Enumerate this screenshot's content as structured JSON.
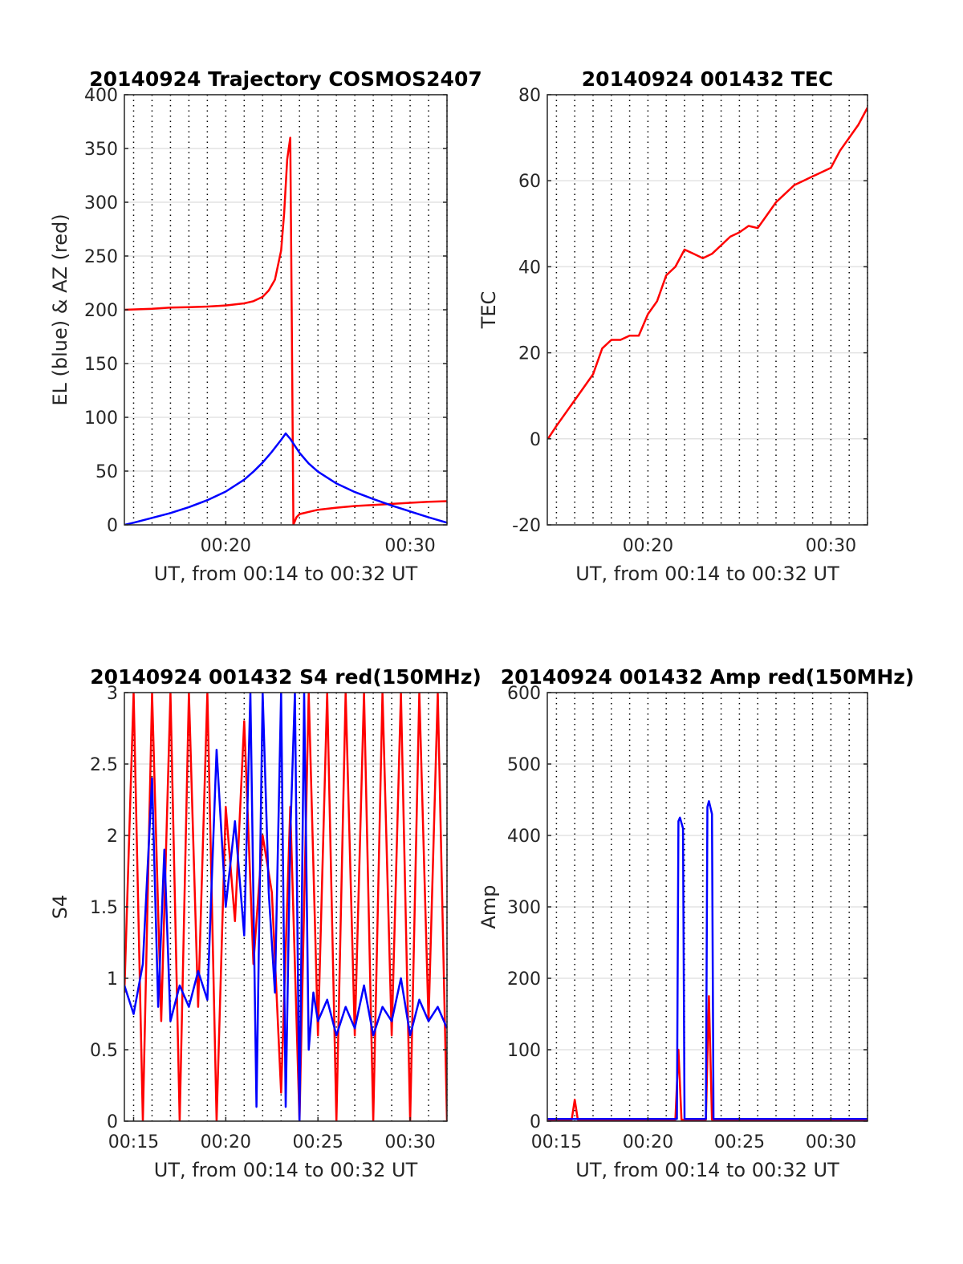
{
  "chart_data": [
    {
      "type": "line",
      "title": "20140924 Trajectory COSMOS2407",
      "xlabel": "UT, from 00:14 to 00:32 UT",
      "ylabel": "EL (blue) & AZ (red)",
      "xlim": [
        "00:14:30",
        "00:32:00"
      ],
      "ylim": [
        0,
        400
      ],
      "yticks": [
        0,
        50,
        100,
        150,
        200,
        250,
        300,
        350,
        400
      ],
      "xticks": [
        "00:20",
        "00:30"
      ],
      "grid": true,
      "series": [
        {
          "color": "#ff0000",
          "x": [
            "00:14:30",
            "00:16:00",
            "00:17:00",
            "00:18:00",
            "00:19:00",
            "00:20:00",
            "00:21:00",
            "00:21:30",
            "00:22:00",
            "00:22:20",
            "00:22:40",
            "00:23:00",
            "00:23:10",
            "00:23:20",
            "00:23:30",
            "00:23:35",
            "00:23:40",
            "00:23:50",
            "00:24:00",
            "00:25:00",
            "00:26:00",
            "00:27:00",
            "00:28:00",
            "00:29:00",
            "00:30:00",
            "00:31:00",
            "00:32:00"
          ],
          "values": [
            200,
            201,
            202,
            202.5,
            203,
            204,
            206,
            208,
            212,
            218,
            228,
            255,
            290,
            340,
            360,
            180,
            0,
            7,
            10,
            14,
            16,
            17.5,
            18.5,
            19.5,
            20.5,
            21.5,
            22
          ]
        },
        {
          "color": "#0000ff",
          "x": [
            "00:14:30",
            "00:15:00",
            "00:16:00",
            "00:17:00",
            "00:18:00",
            "00:19:00",
            "00:20:00",
            "00:21:00",
            "00:21:30",
            "00:22:00",
            "00:22:30",
            "00:23:00",
            "00:23:15",
            "00:23:30",
            "00:24:00",
            "00:24:30",
            "00:25:00",
            "00:26:00",
            "00:27:00",
            "00:28:00",
            "00:29:00",
            "00:30:00",
            "00:31:00",
            "00:32:00"
          ],
          "values": [
            0,
            2,
            6.5,
            11,
            16.5,
            23,
            31,
            42,
            49.5,
            58,
            68,
            79,
            85,
            80,
            67,
            57,
            49.5,
            38.5,
            30.5,
            24,
            18,
            12.5,
            7,
            2
          ]
        }
      ]
    },
    {
      "type": "line",
      "title": "20140924 001432 TEC",
      "xlabel": "UT, from 00:14 to 00:32 UT",
      "ylabel": "TEC",
      "xlim": [
        "00:14:30",
        "00:32:00"
      ],
      "ylim": [
        -20,
        80
      ],
      "yticks": [
        -20,
        0,
        20,
        40,
        60,
        80
      ],
      "xticks": [
        "00:20",
        "00:30"
      ],
      "grid": true,
      "series": [
        {
          "color": "#ff0000",
          "x": [
            "00:14:32",
            "00:15:00",
            "00:16:00",
            "00:17:00",
            "00:17:30",
            "00:18:00",
            "00:18:30",
            "00:19:00",
            "00:19:30",
            "00:20:00",
            "00:20:30",
            "00:21:00",
            "00:21:30",
            "00:22:00",
            "00:22:30",
            "00:23:00",
            "00:23:30",
            "00:24:00",
            "00:24:30",
            "00:25:00",
            "00:25:30",
            "00:26:00",
            "00:26:30",
            "00:27:00",
            "00:27:30",
            "00:28:00",
            "00:28:30",
            "00:29:00",
            "00:29:30",
            "00:30:00",
            "00:30:30",
            "00:31:00",
            "00:31:30",
            "00:32:00"
          ],
          "values": [
            0,
            3,
            9,
            15,
            21,
            23,
            23,
            24,
            24,
            29,
            32,
            38,
            40,
            44,
            43,
            42,
            43,
            45,
            47,
            48,
            49.5,
            49,
            52,
            55,
            57,
            59,
            60,
            61,
            62,
            63,
            67,
            70,
            73,
            77
          ]
        }
      ]
    },
    {
      "type": "line",
      "title": "20140924 001432 S4 red(150MHz)",
      "xlabel": "UT, from 00:14 to 00:32 UT",
      "ylabel": "S4",
      "xlim": [
        "00:14:30",
        "00:32:00"
      ],
      "ylim": [
        0,
        3
      ],
      "yticks": [
        "0",
        "0.5",
        "1",
        "1.5",
        "2",
        "2.5",
        "3"
      ],
      "xticks": [
        "00:15",
        "00:20",
        "00:25",
        "00:30"
      ],
      "grid": true,
      "series": [
        {
          "color": "#ff0000",
          "x": [
            "00:14:30",
            "00:15:00",
            "00:15:30",
            "00:16:00",
            "00:16:30",
            "00:17:00",
            "00:17:30",
            "00:18:00",
            "00:18:30",
            "00:19:00",
            "00:19:30",
            "00:20:00",
            "00:20:30",
            "00:21:00",
            "00:21:30",
            "00:22:00",
            "00:22:30",
            "00:23:00",
            "00:23:30",
            "00:24:00",
            "00:24:30",
            "00:25:00",
            "00:25:30",
            "00:26:00",
            "00:26:30",
            "00:27:00",
            "00:27:30",
            "00:28:00",
            "00:28:30",
            "00:29:00",
            "00:29:30",
            "00:30:00",
            "00:30:30",
            "00:31:00",
            "00:31:30",
            "00:32:00"
          ],
          "values": [
            0.9,
            3,
            0,
            3,
            0.7,
            3,
            0,
            3,
            0.8,
            3,
            0,
            2.2,
            1.4,
            2.8,
            1.1,
            2.0,
            1.6,
            0.2,
            2.2,
            0,
            3,
            0.6,
            3,
            0,
            3,
            0.6,
            3,
            0,
            3,
            0.6,
            3,
            0,
            3,
            0.7,
            3,
            0
          ]
        },
        {
          "color": "#0000ff",
          "x": [
            "00:14:30",
            "00:15:00",
            "00:15:30",
            "00:16:00",
            "00:16:20",
            "00:16:40",
            "00:17:00",
            "00:17:30",
            "00:18:00",
            "00:18:30",
            "00:19:00",
            "00:19:30",
            "00:20:00",
            "00:20:30",
            "00:21:00",
            "00:21:20",
            "00:21:40",
            "00:22:00",
            "00:22:20",
            "00:22:40",
            "00:23:00",
            "00:23:15",
            "00:23:30",
            "00:23:45",
            "00:24:00",
            "00:24:15",
            "00:24:30",
            "00:24:45",
            "00:25:00",
            "00:25:30",
            "00:26:00",
            "00:26:30",
            "00:27:00",
            "00:27:30",
            "00:28:00",
            "00:28:30",
            "00:29:00",
            "00:29:30",
            "00:30:00",
            "00:30:30",
            "00:31:00",
            "00:31:30",
            "00:32:00"
          ],
          "values": [
            0.95,
            0.75,
            1.1,
            2.4,
            0.8,
            1.9,
            0.7,
            0.95,
            0.8,
            1.05,
            0.85,
            2.6,
            1.5,
            2.1,
            1.3,
            3,
            0.1,
            3,
            1.6,
            0.9,
            3,
            0.1,
            2.0,
            3,
            0,
            3,
            0.5,
            0.9,
            0.7,
            0.85,
            0.6,
            0.8,
            0.65,
            0.95,
            0.6,
            0.8,
            0.7,
            1.0,
            0.6,
            0.85,
            0.7,
            0.8,
            0.65
          ]
        }
      ]
    },
    {
      "type": "line",
      "title": "20140924 001432 Amp red(150MHz)",
      "xlabel": "UT, from 00:14 to 00:32 UT",
      "ylabel": "Amp",
      "xlim": [
        "00:14:30",
        "00:32:00"
      ],
      "ylim": [
        0,
        600
      ],
      "yticks": [
        0,
        100,
        200,
        300,
        400,
        500,
        600
      ],
      "xticks": [
        "00:15",
        "00:20",
        "00:25",
        "00:30"
      ],
      "grid": true,
      "series": [
        {
          "color": "#ff0000",
          "x": [
            "00:14:30",
            "00:15:50",
            "00:16:00",
            "00:16:10",
            "00:21:30",
            "00:21:40",
            "00:21:50",
            "00:23:10",
            "00:23:20",
            "00:23:30",
            "00:32:00"
          ],
          "values": [
            2,
            2,
            30,
            2,
            2,
            100,
            2,
            2,
            175,
            2,
            2
          ]
        },
        {
          "color": "#0000ff",
          "x": [
            "00:14:30",
            "00:17:00",
            "00:20:00",
            "00:21:35",
            "00:21:40",
            "00:21:45",
            "00:21:55",
            "00:22:00",
            "00:23:10",
            "00:23:15",
            "00:23:20",
            "00:23:30",
            "00:23:35",
            "00:26:00",
            "00:29:00",
            "00:32:00"
          ],
          "values": [
            3,
            3,
            3,
            3,
            420,
            425,
            410,
            3,
            3,
            440,
            448,
            430,
            3,
            3,
            3,
            3
          ]
        }
      ]
    }
  ]
}
